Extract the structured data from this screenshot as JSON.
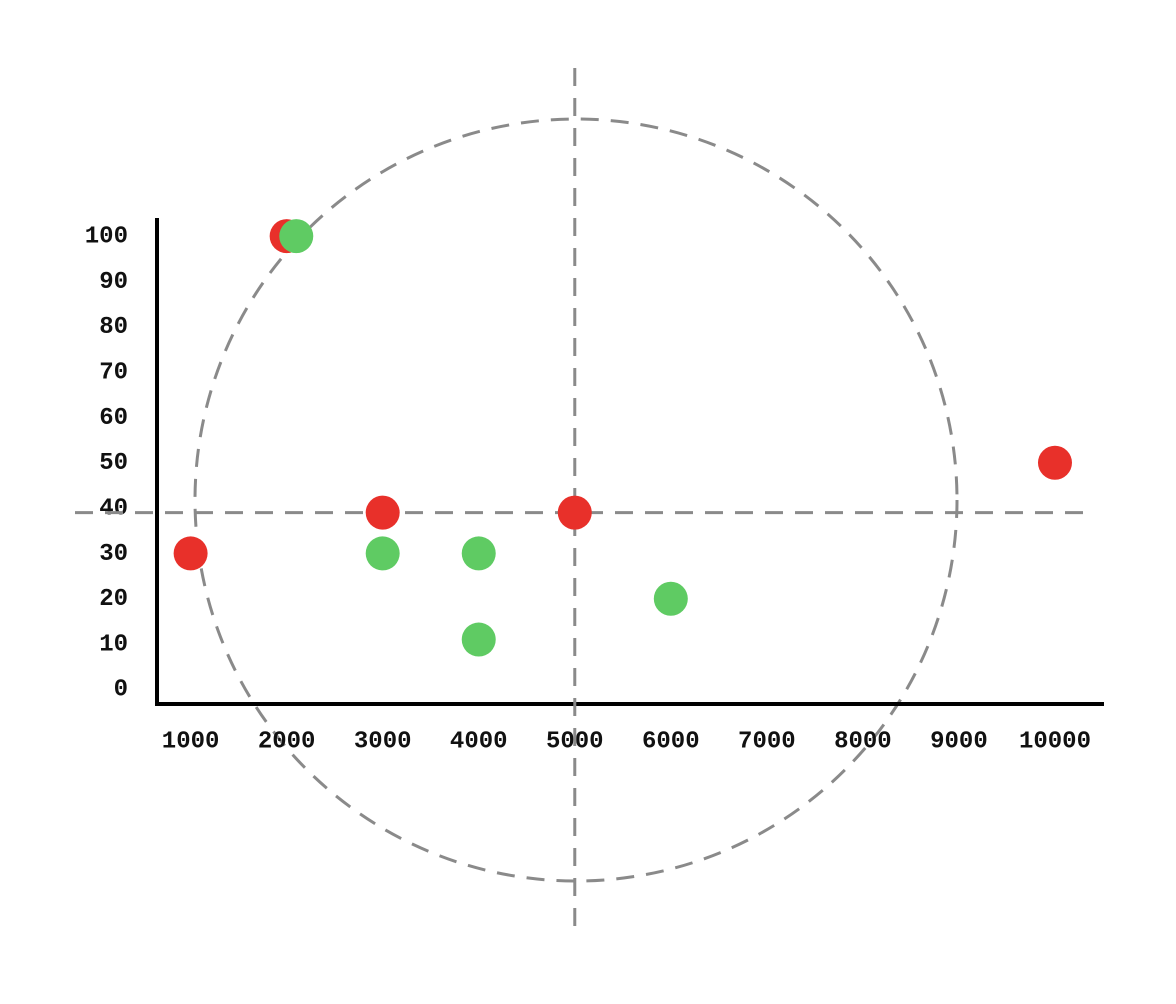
{
  "chart_data": {
    "type": "scatter",
    "series": [
      {
        "color": "#e8302a",
        "x": [
          1000,
          2000,
          3000,
          5000,
          10000
        ],
        "values": [
          30,
          100,
          39,
          39,
          50
        ]
      },
      {
        "color": "#5fcb63",
        "x": [
          2100,
          3000,
          4000,
          4000,
          6000
        ],
        "values": [
          100,
          30,
          30,
          11,
          20
        ]
      }
    ],
    "xlim": [
      650,
      10500
    ],
    "ylim": [
      -3,
      104
    ],
    "xticks": [
      1000,
      2000,
      3000,
      4000,
      5000,
      6000,
      7000,
      8000,
      9000,
      10000
    ],
    "yticks": [
      0,
      10,
      20,
      30,
      40,
      50,
      60,
      70,
      80,
      90,
      100
    ],
    "hline": 39,
    "vline": 5000
  }
}
